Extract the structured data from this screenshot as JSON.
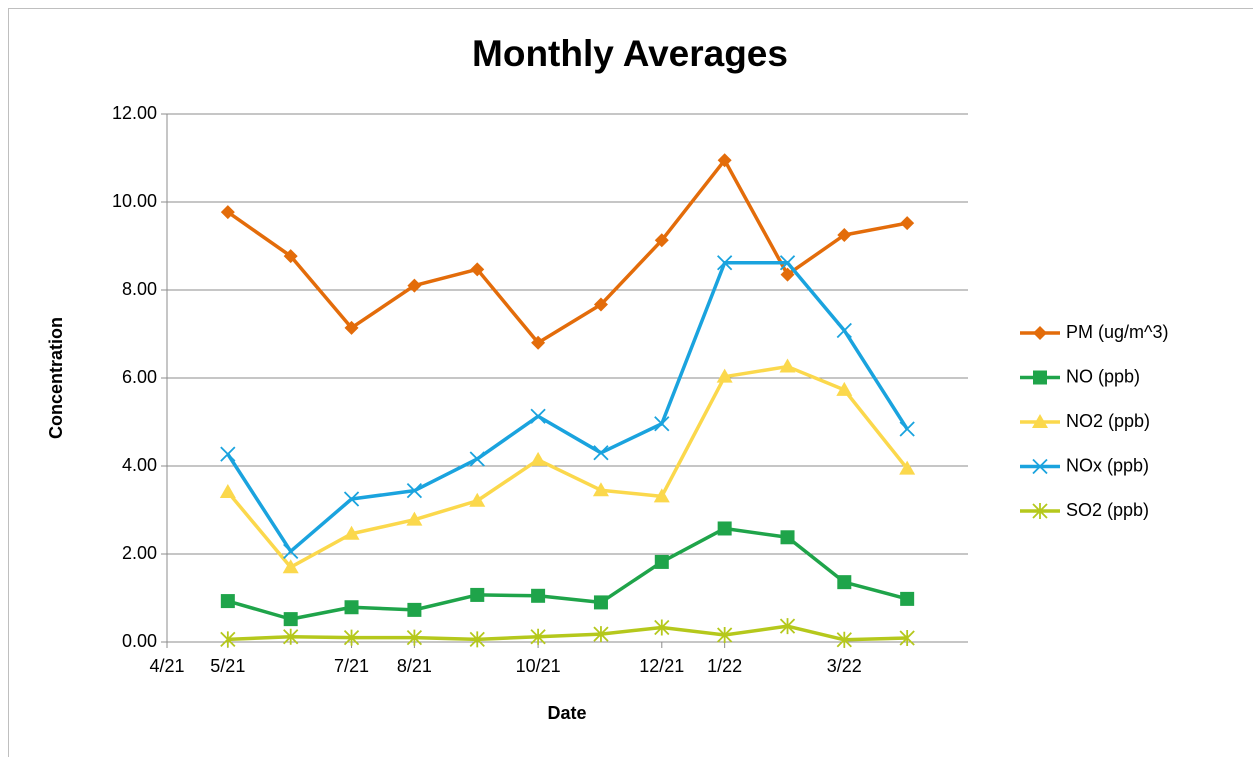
{
  "chart_data": {
    "type": "line",
    "title": "Monthly Averages",
    "x_label": "Date",
    "y_label": "Concentration",
    "x": [
      "2021-05",
      "2021-06",
      "2021-07",
      "2021-08",
      "2021-09",
      "2021-10",
      "2021-11",
      "2021-12",
      "2022-01",
      "2022-02",
      "2022-03",
      "2022-04"
    ],
    "xlim": [
      "2021-04",
      "2022-05"
    ],
    "xticks": [
      {
        "value": "2021-04",
        "label": "4/21"
      },
      {
        "value": "2021-05",
        "label": "5/21"
      },
      {
        "value": "2021-07",
        "label": "7/21"
      },
      {
        "value": "2021-08",
        "label": "8/21"
      },
      {
        "value": "2021-10",
        "label": "10/21"
      },
      {
        "value": "2021-12",
        "label": "12/21"
      },
      {
        "value": "2022-01",
        "label": "1/22"
      },
      {
        "value": "2022-03",
        "label": "3/22"
      }
    ],
    "ylim": [
      0,
      12
    ],
    "yticks": [
      {
        "value": 0,
        "label": "0.00"
      },
      {
        "value": 2,
        "label": "2.00"
      },
      {
        "value": 4,
        "label": "4.00"
      },
      {
        "value": 6,
        "label": "6.00"
      },
      {
        "value": 8,
        "label": "8.00"
      },
      {
        "value": 10,
        "label": "10.00"
      },
      {
        "value": 12,
        "label": "12.00"
      }
    ],
    "grid": true,
    "legend": "right",
    "series": [
      {
        "name": "PM (ug/m^3)",
        "color": "#e36c0a",
        "marker": "diamond",
        "values": [
          9.77,
          8.77,
          7.14,
          8.1,
          8.47,
          6.8,
          7.67,
          9.13,
          10.95,
          8.35,
          9.25,
          9.52
        ]
      },
      {
        "name": "NO (ppb)",
        "color": "#1fa44a",
        "marker": "square",
        "values": [
          0.93,
          0.52,
          0.79,
          0.73,
          1.07,
          1.05,
          0.9,
          1.82,
          2.58,
          2.38,
          1.36,
          0.98
        ]
      },
      {
        "name": "NO2 (ppb)",
        "color": "#fbd84c",
        "marker": "triangle",
        "values": [
          3.41,
          1.7,
          2.46,
          2.78,
          3.21,
          4.14,
          3.45,
          3.31,
          6.03,
          6.26,
          5.73,
          3.94
        ]
      },
      {
        "name": "NOx (ppb)",
        "color": "#1aa3de",
        "marker": "x",
        "values": [
          4.27,
          2.06,
          3.25,
          3.44,
          4.16,
          5.13,
          4.3,
          4.96,
          8.62,
          8.62,
          7.08,
          4.84
        ]
      },
      {
        "name": "SO2 (ppb)",
        "color": "#b5c81c",
        "marker": "star",
        "values": [
          0.06,
          0.12,
          0.1,
          0.1,
          0.06,
          0.12,
          0.18,
          0.33,
          0.16,
          0.36,
          0.05,
          0.09
        ]
      }
    ]
  }
}
